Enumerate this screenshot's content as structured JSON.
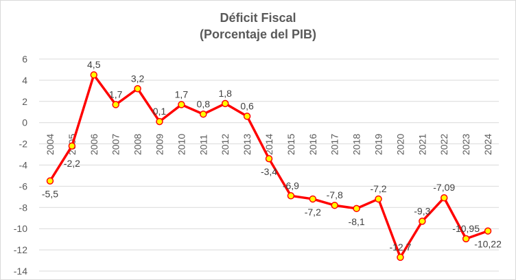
{
  "chart_data": {
    "type": "line",
    "title": "Déficit Fiscal",
    "subtitle": "(Porcentaje del PIB)",
    "xlabel": "",
    "ylabel": "",
    "categories": [
      "2004",
      "2005",
      "2006",
      "2007",
      "2008",
      "2009",
      "2010",
      "2011",
      "2012",
      "2013",
      "2014",
      "2015",
      "2016",
      "2017",
      "2018",
      "2019",
      "2020",
      "2021",
      "2022",
      "2023",
      "2024"
    ],
    "values": [
      -5.5,
      -2.2,
      4.5,
      1.7,
      3.2,
      0.1,
      1.7,
      0.8,
      1.8,
      0.6,
      -3.4,
      -6.9,
      -7.2,
      -7.8,
      -8.1,
      -7.2,
      -12.7,
      -9.3,
      -7.09,
      -10.95,
      -10.22
    ],
    "data_labels": [
      "-5,5",
      "-2,2",
      "4,5",
      "1,7",
      "3,2",
      "0,1",
      "1,7",
      "0,8",
      "1,8",
      "0,6",
      "-3,4",
      "-6,9",
      "-7,2",
      "-7,8",
      "-8,1",
      "-7,2",
      "-12,7",
      "-9,3",
      "-7,09",
      "-10,95",
      "-10,22"
    ],
    "ylim": [
      -14,
      6
    ],
    "yticks": [
      6,
      4,
      2,
      0,
      -2,
      -4,
      -6,
      -8,
      -10,
      -12,
      -14
    ],
    "grid": true,
    "legend": "none",
    "colors": {
      "line": "#ff0000",
      "marker_fill": "#ffff00",
      "marker_edge": "#ff0000",
      "grid": "#d9d9d9"
    }
  }
}
